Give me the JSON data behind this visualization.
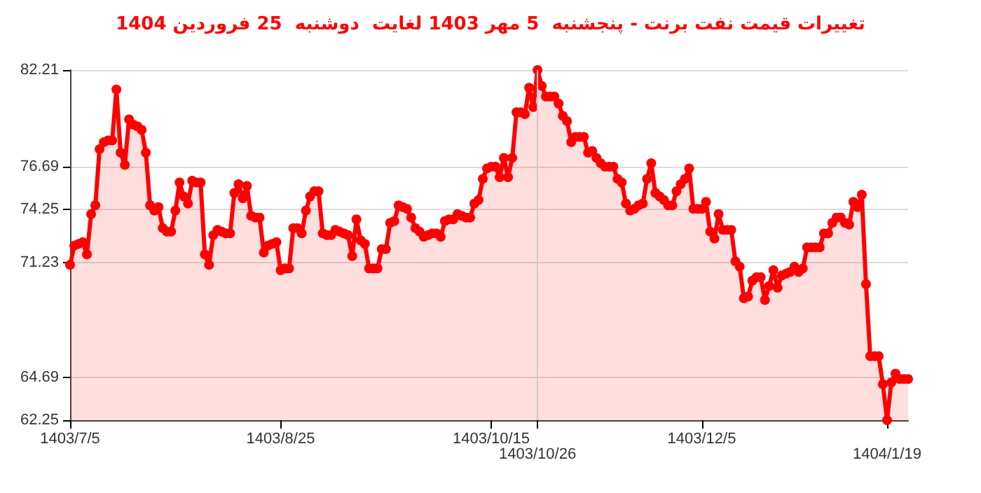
{
  "chart_data": {
    "type": "area",
    "title": "تغییرات قیمت نفت برنت - پنجشنبه  5 مهر 1403 لغایت  دوشنبه  25 فروردین 1404",
    "categories": [
      "1403/7/5",
      null,
      null,
      null,
      null,
      null,
      null,
      null,
      null,
      null,
      null,
      null,
      null,
      null,
      null,
      null,
      null,
      null,
      null,
      null,
      null,
      null,
      null,
      null,
      null,
      null,
      null,
      null,
      null,
      null,
      null,
      null,
      null,
      null,
      null,
      null,
      null,
      null,
      null,
      null,
      null,
      null,
      null,
      null,
      null,
      null,
      null,
      null,
      null,
      null,
      "1403/8/25",
      null,
      null,
      null,
      null,
      null,
      null,
      null,
      null,
      null,
      null,
      null,
      null,
      null,
      null,
      null,
      null,
      null,
      null,
      null,
      null,
      null,
      null,
      null,
      null,
      null,
      null,
      null,
      null,
      null,
      null,
      null,
      null,
      null,
      null,
      null,
      null,
      null,
      null,
      null,
      null,
      null,
      null,
      null,
      null,
      null,
      null,
      null,
      null,
      null,
      "1403/10/15",
      null,
      null,
      null,
      null,
      null,
      null,
      null,
      null,
      null,
      null,
      "1403/10/26",
      null,
      null,
      null,
      null,
      null,
      null,
      null,
      null,
      null,
      null,
      null,
      null,
      null,
      null,
      null,
      null,
      null,
      null,
      null,
      null,
      null,
      null,
      null,
      null,
      null,
      null,
      null,
      null,
      null,
      null,
      null,
      null,
      null,
      null,
      null,
      null,
      null,
      null,
      "1403/12/5",
      null,
      null,
      null,
      null,
      null,
      null,
      null,
      null,
      null,
      null,
      null,
      null,
      null,
      null,
      null,
      null,
      null,
      null,
      null,
      null,
      null,
      null,
      null,
      null,
      null,
      null,
      null,
      null,
      null,
      null,
      null,
      null,
      null,
      null,
      null,
      null,
      null,
      null,
      null,
      null,
      null,
      null,
      null,
      "1404/1/19",
      null,
      null,
      null,
      null,
      null
    ],
    "series": [
      {
        "color": "#ff0000",
        "values": [
          71.1,
          72.2,
          72.3,
          72.4,
          71.7,
          74.0,
          74.5,
          77.7,
          78.1,
          78.2,
          78.2,
          81.1,
          77.5,
          76.8,
          79.4,
          79.1,
          79.0,
          78.8,
          77.5,
          74.5,
          74.2,
          74.4,
          73.2,
          73.0,
          73.0,
          74.2,
          75.8,
          75.0,
          74.6,
          75.9,
          75.8,
          75.8,
          71.7,
          71.1,
          72.8,
          73.1,
          73.0,
          72.9,
          72.9,
          75.2,
          75.7,
          74.9,
          75.6,
          73.9,
          73.8,
          73.8,
          71.8,
          72.2,
          72.3,
          72.4,
          70.8,
          70.9,
          70.9,
          73.2,
          73.2,
          72.9,
          74.2,
          75.0,
          75.3,
          75.3,
          72.9,
          72.8,
          72.8,
          73.1,
          73.0,
          72.9,
          72.8,
          71.6,
          73.7,
          72.5,
          72.3,
          70.9,
          70.9,
          70.9,
          72.0,
          72.0,
          73.5,
          73.6,
          74.5,
          74.4,
          74.3,
          73.8,
          73.2,
          73.0,
          72.7,
          72.8,
          72.9,
          72.9,
          72.7,
          73.6,
          73.7,
          73.7,
          74.0,
          73.9,
          73.8,
          73.8,
          74.6,
          74.8,
          76.0,
          76.6,
          76.7,
          76.7,
          76.1,
          77.2,
          76.1,
          77.2,
          79.8,
          79.8,
          79.7,
          81.2,
          80.1,
          82.21,
          81.3,
          80.7,
          80.7,
          80.7,
          80.3,
          79.6,
          79.3,
          78.1,
          78.4,
          78.4,
          78.4,
          77.5,
          77.6,
          77.2,
          76.9,
          76.7,
          76.7,
          76.7,
          76.0,
          75.8,
          74.6,
          74.2,
          74.3,
          74.5,
          74.6,
          76.0,
          76.9,
          75.2,
          75.0,
          74.8,
          74.5,
          74.5,
          75.3,
          75.7,
          76.0,
          76.6,
          74.3,
          74.3,
          74.3,
          74.7,
          73.0,
          72.6,
          74.0,
          73.1,
          73.1,
          73.1,
          71.3,
          71.0,
          69.2,
          69.3,
          70.2,
          70.4,
          70.4,
          69.1,
          69.9,
          70.8,
          69.8,
          70.5,
          70.6,
          70.7,
          71.0,
          70.7,
          70.9,
          72.1,
          72.1,
          72.1,
          72.1,
          72.9,
          72.9,
          73.5,
          73.8,
          73.8,
          73.5,
          73.4,
          74.7,
          74.4,
          75.1,
          70.0,
          65.9,
          65.9,
          65.9,
          64.3,
          62.25,
          64.4,
          64.9,
          64.6,
          64.6,
          64.6
        ]
      }
    ],
    "ylim": [
      62.25,
      82.21
    ],
    "yticks": [
      82.21,
      76.69,
      74.25,
      71.23,
      64.69,
      62.25
    ],
    "grid": "y",
    "marker": "circle",
    "line_style": "solid",
    "ref_lines": [
      {
        "axis": "x",
        "value": "1403/10/26",
        "color": "#cccccc"
      }
    ]
  }
}
